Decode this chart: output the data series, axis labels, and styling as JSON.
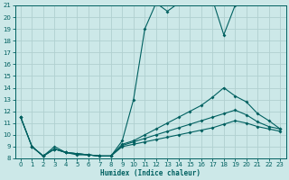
{
  "xlabel": "Humidex (Indice chaleur)",
  "xlim": [
    -0.5,
    23.5
  ],
  "ylim": [
    8,
    21
  ],
  "yticks": [
    8,
    9,
    10,
    11,
    12,
    13,
    14,
    15,
    16,
    17,
    18,
    19,
    20,
    21
  ],
  "xticks": [
    0,
    1,
    2,
    3,
    4,
    5,
    6,
    7,
    8,
    9,
    10,
    11,
    12,
    13,
    14,
    15,
    16,
    17,
    18,
    19,
    20,
    21,
    22,
    23
  ],
  "bg_color": "#cce8e8",
  "grid_color": "#b0d0d0",
  "line_color": "#006060",
  "curve1_x": [
    0,
    1,
    2,
    3,
    4,
    5,
    6,
    7,
    8,
    9,
    10,
    11,
    12,
    13,
    14,
    15,
    16,
    17,
    18,
    19
  ],
  "curve1_y": [
    11.5,
    9.0,
    8.2,
    9.0,
    8.5,
    8.3,
    8.3,
    8.2,
    8.2,
    9.5,
    13.0,
    19.0,
    21.2,
    20.5,
    21.2,
    21.3,
    21.4,
    21.5,
    18.5,
    21.0
  ],
  "curve2_x": [
    0,
    1,
    2,
    3,
    4,
    5,
    6,
    7,
    8,
    9,
    10,
    11,
    12,
    13,
    14,
    15,
    16,
    17,
    18,
    19,
    20,
    21,
    22,
    23
  ],
  "curve2_y": [
    11.5,
    9.0,
    8.2,
    8.8,
    8.5,
    8.4,
    8.3,
    8.2,
    8.2,
    9.2,
    9.5,
    10.0,
    10.5,
    11.0,
    11.5,
    12.0,
    12.5,
    13.2,
    14.0,
    13.3,
    12.8,
    11.8,
    11.2,
    10.5
  ],
  "curve3_x": [
    1,
    2,
    3,
    4,
    5,
    6,
    7,
    8,
    9,
    10,
    11,
    12,
    13,
    14,
    15,
    16,
    17,
    18,
    19,
    20,
    21,
    22,
    23
  ],
  "curve3_y": [
    9.0,
    8.2,
    8.8,
    8.5,
    8.4,
    8.3,
    8.2,
    8.2,
    9.1,
    9.4,
    9.7,
    10.0,
    10.3,
    10.6,
    10.9,
    11.2,
    11.5,
    11.8,
    12.1,
    11.7,
    11.1,
    10.7,
    10.5
  ],
  "curve4_x": [
    0,
    1,
    2,
    3,
    4,
    5,
    6,
    7,
    8,
    9,
    10,
    11,
    12,
    13,
    14,
    15,
    16,
    17,
    18,
    19,
    20,
    21,
    22,
    23
  ],
  "curve4_y": [
    11.5,
    9.0,
    8.2,
    8.8,
    8.5,
    8.4,
    8.3,
    8.2,
    8.2,
    9.0,
    9.2,
    9.4,
    9.6,
    9.8,
    10.0,
    10.2,
    10.4,
    10.6,
    10.9,
    11.2,
    11.0,
    10.7,
    10.5,
    10.3
  ]
}
